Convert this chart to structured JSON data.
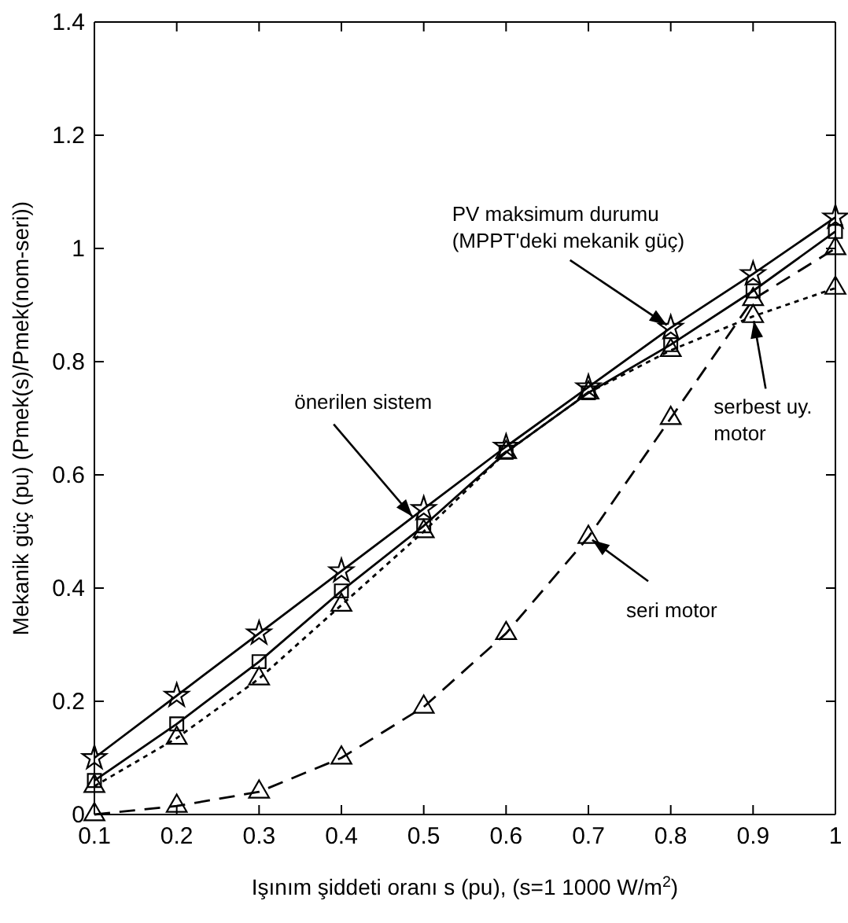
{
  "chart_data": {
    "type": "line",
    "xlabel": "Işınım şiddeti oranı s (pu), (s=1 1000 W/m$^{2}$)",
    "ylabel": "Mekanik güç (pu) (Pmek(s)/Pmek(nom-seri))",
    "x": [
      0.1,
      0.2,
      0.3,
      0.4,
      0.5,
      0.6,
      0.7,
      0.8,
      0.9,
      1.0
    ],
    "series": [
      {
        "color": "#000000",
        "marker": "star",
        "line_style": "solid",
        "values": [
          0.1,
          0.21,
          0.32,
          0.43,
          0.54,
          0.65,
          0.755,
          0.86,
          0.955,
          1.055
        ]
      },
      {
        "color": "#000000",
        "marker": "square",
        "line_style": "solid",
        "values": [
          0.06,
          0.16,
          0.27,
          0.395,
          0.51,
          0.64,
          0.745,
          0.83,
          0.925,
          1.03
        ]
      },
      {
        "color": "#000000",
        "marker": "triangle",
        "line_style": "dotted",
        "values": [
          0.05,
          0.135,
          0.24,
          0.37,
          0.5,
          0.64,
          0.745,
          0.82,
          0.88,
          0.93
        ]
      },
      {
        "color": "#000000",
        "marker": "triangle",
        "line_style": "dashed",
        "values": [
          0,
          0.015,
          0.04,
          0.1,
          0.19,
          0.32,
          0.49,
          0.7,
          0.91,
          1.0
        ]
      }
    ],
    "xlim": [
      0.1,
      1
    ],
    "xticks": [
      0.1,
      0.2,
      0.3,
      0.4,
      0.5,
      0.6,
      0.7,
      0.8,
      0.9,
      1
    ],
    "ylim": [
      0,
      1.4
    ],
    "yticks": [
      0,
      0.2,
      0.4,
      0.6,
      0.8,
      1,
      1.2,
      1.4
    ],
    "grid": false,
    "annotations": [
      {
        "text": "PV maksimum durumu\n(MPPT'deki mekanik güç)",
        "x": 0.8,
        "y": 0.86
      },
      {
        "text": "önerilen sistem",
        "x": 0.49,
        "y": 0.52
      },
      {
        "text": "serbest uy.\nmotor",
        "x": 0.9,
        "y": 0.88
      },
      {
        "text": "seri motor",
        "x": 0.7,
        "y": 0.49
      }
    ]
  }
}
